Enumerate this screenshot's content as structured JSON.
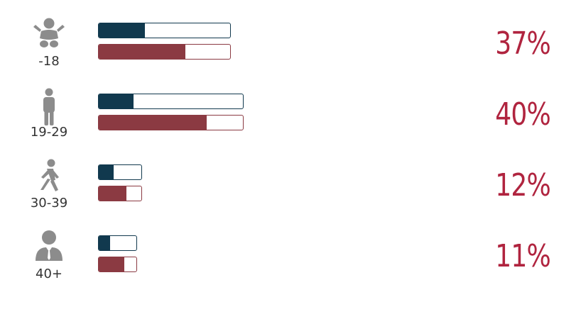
{
  "colors": {
    "top_bar": "#11394e",
    "bottom_bar": "#8b3a42",
    "percent": "#b0243f",
    "icon": "#8c8c8c"
  },
  "chart_data": {
    "type": "bar",
    "categories": [
      "-18",
      "19-29",
      "30-39",
      "40+"
    ],
    "category_icons": [
      "baby-icon",
      "person-standing-icon",
      "person-walking-icon",
      "businessman-icon"
    ],
    "bar_totals": [
      0.91,
      1.0,
      0.3,
      0.27
    ],
    "series": [
      {
        "values": [
          0.35,
          0.24,
          0.35,
          0.3
        ]
      },
      {
        "values": [
          0.66,
          0.75,
          0.65,
          0.68
        ]
      }
    ],
    "percent_labels": [
      "37%",
      "40%",
      "12%",
      "11%"
    ]
  }
}
